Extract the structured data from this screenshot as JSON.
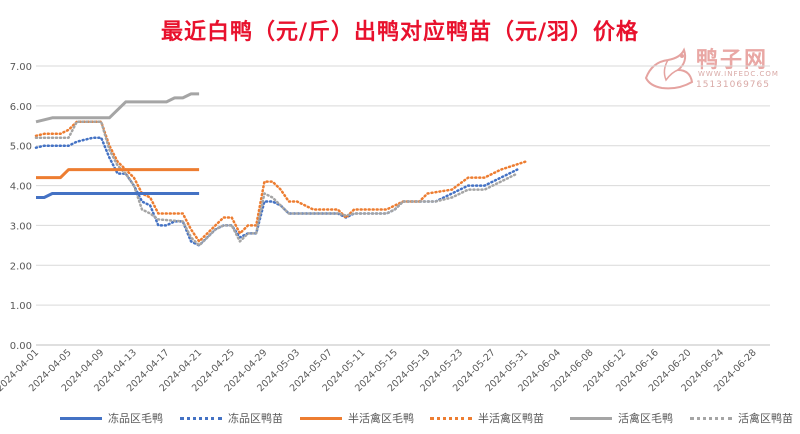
{
  "title": "最近白鸭（元/斤）出鸭对应鸭苗（元/羽）价格",
  "watermark": {
    "name": "鸭子网",
    "url": "WWW.INFEDC.COM",
    "phone": "15131069765"
  },
  "chart_data": {
    "type": "line",
    "title": "最近白鸭（元/斤）出鸭对应鸭苗（元/羽）价格",
    "xlabel": "",
    "ylabel": "",
    "ylim": [
      0,
      7
    ],
    "yticks": [
      "0.00",
      "1.00",
      "2.00",
      "3.00",
      "4.00",
      "5.00",
      "6.00",
      "7.00"
    ],
    "xlim": [
      "2024-04-01",
      "2024-06-30"
    ],
    "xticks": [
      "2024-04-01",
      "2024-04-05",
      "2024-04-09",
      "2024-04-13",
      "2024-04-17",
      "2024-04-21",
      "2024-04-25",
      "2024-04-29",
      "2024-05-03",
      "2024-05-07",
      "2024-05-11",
      "2024-05-15",
      "2024-05-19",
      "2024-05-23",
      "2024-05-27",
      "2024-05-31",
      "2024-06-04",
      "2024-06-08",
      "2024-06-12",
      "2024-06-16",
      "2024-06-20",
      "2024-06-24",
      "2024-06-28"
    ],
    "grid": "horizontal",
    "legend": "bottom",
    "series": [
      {
        "name": "冻品区毛鸭",
        "color": "#4472c4",
        "style": "solid",
        "points": [
          [
            "2024-04-01",
            3.7
          ],
          [
            "2024-04-02",
            3.7
          ],
          [
            "2024-04-03",
            3.8
          ],
          [
            "2024-04-10",
            3.8
          ],
          [
            "2024-04-20",
            3.8
          ],
          [
            "2024-04-21",
            3.8
          ]
        ]
      },
      {
        "name": "冻品区鸭苗",
        "color": "#4472c4",
        "style": "dotted",
        "points": [
          [
            "2024-04-01",
            4.95
          ],
          [
            "2024-04-02",
            5.0
          ],
          [
            "2024-04-05",
            5.0
          ],
          [
            "2024-04-06",
            5.1
          ],
          [
            "2024-04-08",
            5.2
          ],
          [
            "2024-04-09",
            5.2
          ],
          [
            "2024-04-10",
            4.7
          ],
          [
            "2024-04-11",
            4.3
          ],
          [
            "2024-04-12",
            4.3
          ],
          [
            "2024-04-13",
            4.0
          ],
          [
            "2024-04-14",
            3.6
          ],
          [
            "2024-04-15",
            3.5
          ],
          [
            "2024-04-16",
            3.0
          ],
          [
            "2024-04-17",
            3.0
          ],
          [
            "2024-04-18",
            3.1
          ],
          [
            "2024-04-19",
            3.1
          ],
          [
            "2024-04-20",
            2.6
          ],
          [
            "2024-04-21",
            2.5
          ],
          [
            "2024-04-22",
            2.7
          ],
          [
            "2024-04-23",
            2.9
          ],
          [
            "2024-04-24",
            3.0
          ],
          [
            "2024-04-25",
            3.0
          ],
          [
            "2024-04-26",
            2.7
          ],
          [
            "2024-04-27",
            2.8
          ],
          [
            "2024-04-28",
            2.8
          ],
          [
            "2024-04-29",
            3.6
          ],
          [
            "2024-04-30",
            3.6
          ],
          [
            "2024-05-01",
            3.5
          ],
          [
            "2024-05-02",
            3.3
          ],
          [
            "2024-05-06",
            3.3
          ],
          [
            "2024-05-08",
            3.3
          ],
          [
            "2024-05-09",
            3.2
          ],
          [
            "2024-05-10",
            3.3
          ],
          [
            "2024-05-12",
            3.3
          ],
          [
            "2024-05-14",
            3.3
          ],
          [
            "2024-05-15",
            3.4
          ],
          [
            "2024-05-16",
            3.6
          ],
          [
            "2024-05-20",
            3.6
          ],
          [
            "2024-05-22",
            3.8
          ],
          [
            "2024-05-24",
            4.0
          ],
          [
            "2024-05-26",
            4.0
          ],
          [
            "2024-05-28",
            4.2
          ],
          [
            "2024-05-30",
            4.4
          ]
        ]
      },
      {
        "name": "半活禽区毛鸭",
        "color": "#ed7d31",
        "style": "solid",
        "points": [
          [
            "2024-04-01",
            4.2
          ],
          [
            "2024-04-04",
            4.2
          ],
          [
            "2024-04-05",
            4.4
          ],
          [
            "2024-04-10",
            4.4
          ],
          [
            "2024-04-21",
            4.4
          ]
        ]
      },
      {
        "name": "半活禽区鸭苗",
        "color": "#ed7d31",
        "style": "dotted",
        "points": [
          [
            "2024-04-01",
            5.25
          ],
          [
            "2024-04-02",
            5.3
          ],
          [
            "2024-04-04",
            5.3
          ],
          [
            "2024-04-05",
            5.4
          ],
          [
            "2024-04-06",
            5.6
          ],
          [
            "2024-04-09",
            5.6
          ],
          [
            "2024-04-10",
            5.0
          ],
          [
            "2024-04-11",
            4.6
          ],
          [
            "2024-04-12",
            4.4
          ],
          [
            "2024-04-13",
            4.2
          ],
          [
            "2024-04-14",
            3.8
          ],
          [
            "2024-04-15",
            3.7
          ],
          [
            "2024-04-16",
            3.3
          ],
          [
            "2024-04-19",
            3.3
          ],
          [
            "2024-04-20",
            2.9
          ],
          [
            "2024-04-21",
            2.6
          ],
          [
            "2024-04-22",
            2.8
          ],
          [
            "2024-04-23",
            3.0
          ],
          [
            "2024-04-24",
            3.2
          ],
          [
            "2024-04-25",
            3.2
          ],
          [
            "2024-04-26",
            2.8
          ],
          [
            "2024-04-27",
            3.0
          ],
          [
            "2024-04-28",
            3.0
          ],
          [
            "2024-04-29",
            4.1
          ],
          [
            "2024-04-30",
            4.1
          ],
          [
            "2024-05-01",
            3.9
          ],
          [
            "2024-05-02",
            3.6
          ],
          [
            "2024-05-03",
            3.6
          ],
          [
            "2024-05-05",
            3.4
          ],
          [
            "2024-05-08",
            3.4
          ],
          [
            "2024-05-09",
            3.2
          ],
          [
            "2024-05-10",
            3.4
          ],
          [
            "2024-05-14",
            3.4
          ],
          [
            "2024-05-15",
            3.5
          ],
          [
            "2024-05-16",
            3.6
          ],
          [
            "2024-05-18",
            3.6
          ],
          [
            "2024-05-19",
            3.8
          ],
          [
            "2024-05-22",
            3.9
          ],
          [
            "2024-05-24",
            4.2
          ],
          [
            "2024-05-26",
            4.2
          ],
          [
            "2024-05-28",
            4.4
          ],
          [
            "2024-05-31",
            4.6
          ]
        ]
      },
      {
        "name": "活禽区毛鸭",
        "color": "#a5a5a5",
        "style": "solid",
        "points": [
          [
            "2024-04-01",
            5.6
          ],
          [
            "2024-04-02",
            5.65
          ],
          [
            "2024-04-03",
            5.7
          ],
          [
            "2024-04-10",
            5.7
          ],
          [
            "2024-04-12",
            6.1
          ],
          [
            "2024-04-17",
            6.1
          ],
          [
            "2024-04-18",
            6.2
          ],
          [
            "2024-04-19",
            6.2
          ],
          [
            "2024-04-20",
            6.3
          ],
          [
            "2024-04-21",
            6.3
          ]
        ]
      },
      {
        "name": "活禽区鸭苗",
        "color": "#a5a5a5",
        "style": "dotted",
        "points": [
          [
            "2024-04-01",
            5.2
          ],
          [
            "2024-04-05",
            5.2
          ],
          [
            "2024-04-06",
            5.6
          ],
          [
            "2024-04-09",
            5.6
          ],
          [
            "2024-04-10",
            4.9
          ],
          [
            "2024-04-11",
            4.5
          ],
          [
            "2024-04-12",
            4.3
          ],
          [
            "2024-04-13",
            4.0
          ],
          [
            "2024-04-14",
            3.4
          ],
          [
            "2024-04-15",
            3.3
          ],
          [
            "2024-04-16",
            3.15
          ],
          [
            "2024-04-19",
            3.1
          ],
          [
            "2024-04-20",
            2.7
          ],
          [
            "2024-04-21",
            2.5
          ],
          [
            "2024-04-22",
            2.7
          ],
          [
            "2024-04-23",
            2.9
          ],
          [
            "2024-04-24",
            3.0
          ],
          [
            "2024-04-25",
            3.0
          ],
          [
            "2024-04-26",
            2.6
          ],
          [
            "2024-04-27",
            2.8
          ],
          [
            "2024-04-28",
            2.8
          ],
          [
            "2024-04-29",
            3.8
          ],
          [
            "2024-04-30",
            3.7
          ],
          [
            "2024-05-01",
            3.5
          ],
          [
            "2024-05-02",
            3.3
          ],
          [
            "2024-05-08",
            3.3
          ],
          [
            "2024-05-09",
            3.25
          ],
          [
            "2024-05-10",
            3.3
          ],
          [
            "2024-05-14",
            3.3
          ],
          [
            "2024-05-15",
            3.4
          ],
          [
            "2024-05-16",
            3.6
          ],
          [
            "2024-05-20",
            3.6
          ],
          [
            "2024-05-22",
            3.7
          ],
          [
            "2024-05-24",
            3.9
          ],
          [
            "2024-05-26",
            3.9
          ],
          [
            "2024-05-28",
            4.1
          ],
          [
            "2024-05-30",
            4.3
          ]
        ]
      }
    ]
  }
}
